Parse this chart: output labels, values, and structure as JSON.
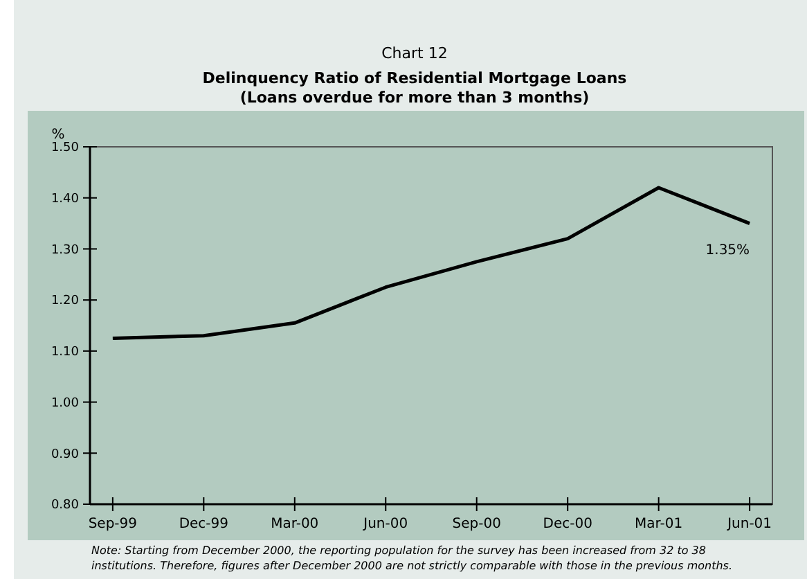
{
  "chart_data": {
    "type": "line",
    "title": "Chart 12",
    "subtitle": "Delinquency Ratio of Residential Mortgage Loans\n(Loans overdue for more than 3 months)",
    "ylabel": "%",
    "categories": [
      "Sep-99",
      "Dec-99",
      "Mar-00",
      "Jun-00",
      "Sep-00",
      "Dec-00",
      "Mar-01",
      "Jun-01"
    ],
    "series": [
      {
        "color": "#000000",
        "values": [
          1.125,
          1.13,
          1.155,
          1.225,
          1.275,
          1.32,
          1.42,
          1.35
        ]
      }
    ],
    "ylim": [
      0.8,
      1.5
    ],
    "yticks": [
      {
        "value": 0.8,
        "label": "0.80"
      },
      {
        "value": 0.9,
        "label": "0.90"
      },
      {
        "value": 1.0,
        "label": "1.00"
      },
      {
        "value": 1.1,
        "label": "1.10"
      },
      {
        "value": 1.2,
        "label": "1.20"
      },
      {
        "value": 1.3,
        "label": "1.30"
      },
      {
        "value": 1.4,
        "label": "1.40"
      },
      {
        "value": 1.5,
        "label": "1.50"
      }
    ],
    "grid": false,
    "marker": "none",
    "line_style": "solid",
    "annotations": [
      {
        "text": "1.35%",
        "x": "Jun-01",
        "y": 1.35
      },
      "Note:  Starting from December 2000, the reporting population for the survey has been increased from 32 to 38 institutions. Therefore, figures after December 2000 are not strictly comparable with those in the previous months."
    ]
  }
}
